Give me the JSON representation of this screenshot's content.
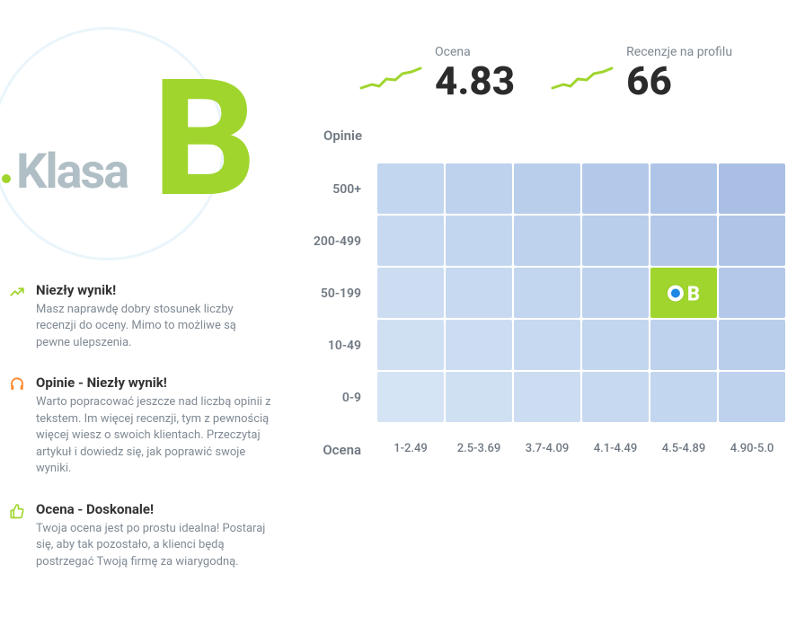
{
  "grade": {
    "label": "Klasa",
    "letter": "B",
    "letter_color": "#a0d52e",
    "circle_color": "#eaf5fb",
    "label_color": "#b0bec5"
  },
  "insights": [
    {
      "icon": "trend-up-icon",
      "icon_color": "#a0d52e",
      "title": "Niezły wynik!",
      "desc": "Masz naprawdę dobry stosunek liczby recenzji do oceny. Mimo to możliwe są pewne ulepszenia."
    },
    {
      "icon": "headset-icon",
      "icon_color": "#ff8a30",
      "title": "Opinie - Niezły wynik!",
      "desc": "Warto popracować jeszcze nad liczbą opinii z tekstem. Im więcej recenzji, tym z pewnością więcej wiesz o swoich klientach. Przeczytaj artykuł i dowiedz się, jak poprawić swoje wyniki."
    },
    {
      "icon": "thumb-up-icon",
      "icon_color": "#a0d52e",
      "title": "Ocena - Doskonale!",
      "desc": "Twoja ocena jest po prostu idealna! Postaraj się, aby tak pozostało, a klienci będą postrzegać Twoją firmę za wiarygodną."
    }
  ],
  "stats": {
    "rating_label": "Ocena",
    "rating_value": "4.83",
    "reviews_label": "Recenzje na profilu",
    "reviews_value": "66",
    "spark_color": "#a0d52e"
  },
  "heatmap": {
    "y_title": "Opinie",
    "x_title": "Ocena",
    "y_labels": [
      "500+",
      "200-499",
      "50-199",
      "10-49",
      "0-9"
    ],
    "x_labels": [
      "1-2.49",
      "2.5-3.69",
      "3.7-4.09",
      "4.1-4.49",
      "4.5-4.89",
      "4.90-5.0"
    ],
    "rows": 5,
    "cols": 6,
    "cell_colors": [
      [
        "#c3d6ef",
        "#bed2ed",
        "#b9ceeb",
        "#b4c9e9",
        "#afc5e7",
        "#a9c0e4"
      ],
      [
        "#c7d9f0",
        "#c3d6ef",
        "#bed2ed",
        "#b9ceeb",
        "#b4c9e9",
        "#afc5e7"
      ],
      [
        "#ccddf2",
        "#c7d9f0",
        "#c3d6ef",
        "#bed2ed",
        "#a0d52e",
        "#b4c9e9"
      ],
      [
        "#d0e0f3",
        "#ccddf2",
        "#c7d9f0",
        "#c3d6ef",
        "#bed2ed",
        "#b9ceeb"
      ],
      [
        "#d5e4f5",
        "#d0e0f3",
        "#ccddf2",
        "#c7d9f0",
        "#c3d6ef",
        "#bed2ed"
      ]
    ],
    "marker": {
      "row": 2,
      "col": 4,
      "letter": "B",
      "dot_color": "#1e88e5"
    }
  }
}
